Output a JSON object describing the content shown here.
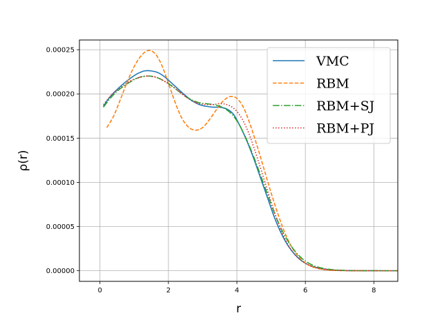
{
  "chart_data": {
    "type": "line",
    "title": "",
    "xlabel": "r",
    "ylabel": "ρ(r)",
    "xlim": [
      -0.6,
      8.7
    ],
    "ylim": [
      -1.2e-05,
      0.000261
    ],
    "grid": true,
    "legend_position": "upper-right",
    "x_ticks": [
      0,
      2,
      4,
      6,
      8
    ],
    "x_tick_labels": [
      "0",
      "2",
      "4",
      "6",
      "8"
    ],
    "y_ticks": [
      0.0,
      5e-05,
      0.0001,
      0.00015,
      0.0002,
      0.00025
    ],
    "y_tick_labels": [
      "0.00000",
      "0.00005",
      "0.00010",
      "0.00015",
      "0.00020",
      "0.00025"
    ],
    "series": [
      {
        "name": "VMC",
        "color": "#1f77b4",
        "dash": "solid",
        "x": [
          0.1,
          0.3,
          0.5,
          0.7,
          0.9,
          1.1,
          1.3,
          1.5,
          1.7,
          1.9,
          2.1,
          2.3,
          2.5,
          2.7,
          2.9,
          3.1,
          3.3,
          3.5,
          3.7,
          3.9,
          4.1,
          4.3,
          4.5,
          4.7,
          4.9,
          5.1,
          5.3,
          5.5,
          5.7,
          5.9,
          6.1,
          6.3,
          6.5,
          6.7,
          6.9,
          7.1,
          7.3,
          7.5,
          7.7,
          7.9,
          8.1,
          8.3,
          8.5,
          8.7
        ],
        "y": [
          0.000186,
          0.000197,
          0.000205,
          0.000212,
          0.000218,
          0.000223,
          0.000226,
          0.000226,
          0.000224,
          0.000219,
          0.000212,
          0.000205,
          0.000198,
          0.000192,
          0.000188,
          0.000186,
          0.000185,
          0.000185,
          0.000183,
          0.000177,
          0.000163,
          0.000146,
          0.000126,
          0.000104,
          8.2e-05,
          6e-05,
          4.2e-05,
          2.8e-05,
          1.8e-05,
          1.1e-05,
          6.5e-06,
          3.8e-06,
          2.2e-06,
          1.2e-06,
          6e-07,
          3e-07,
          1.5e-07,
          8e-08,
          4e-08,
          2e-08,
          1e-08,
          0.0,
          0.0,
          0.0
        ]
      },
      {
        "name": "RBM",
        "color": "#ff7f0e",
        "dash": "dashed",
        "x": [
          0.2,
          0.4,
          0.6,
          0.8,
          1.0,
          1.2,
          1.4,
          1.6,
          1.8,
          2.0,
          2.2,
          2.4,
          2.6,
          2.8,
          3.0,
          3.2,
          3.4,
          3.6,
          3.8,
          4.0,
          4.2,
          4.4,
          4.6,
          4.8,
          5.0,
          5.2,
          5.4,
          5.6,
          5.8,
          6.0,
          6.2,
          6.4,
          6.6,
          6.8,
          7.0,
          7.2,
          7.4,
          7.6,
          7.8,
          8.0,
          8.2,
          8.4,
          8.7
        ],
        "y": [
          0.000162,
          0.000175,
          0.000194,
          0.000214,
          0.000231,
          0.000243,
          0.000249,
          0.000246,
          0.000233,
          0.000212,
          0.00019,
          0.000172,
          0.000162,
          0.000159,
          0.000162,
          0.000171,
          0.000182,
          0.000192,
          0.000197,
          0.000195,
          0.000184,
          0.000164,
          0.00014,
          0.000114,
          8.8e-05,
          6.4e-05,
          4.3e-05,
          2.7e-05,
          1.6e-05,
          8.8e-06,
          4.6e-06,
          2.3e-06,
          1.1e-06,
          5e-07,
          2.2e-07,
          1e-07,
          4e-08,
          2e-08,
          1e-08,
          0.0,
          0.0,
          0.0,
          0.0
        ]
      },
      {
        "name": "RBM+SJ",
        "color": "#2ca02c",
        "dash": "dashdot",
        "x": [
          0.1,
          0.3,
          0.5,
          0.7,
          0.9,
          1.1,
          1.3,
          1.5,
          1.7,
          1.9,
          2.1,
          2.3,
          2.5,
          2.7,
          2.9,
          3.1,
          3.3,
          3.5,
          3.7,
          3.9,
          4.1,
          4.3,
          4.5,
          4.7,
          4.9,
          5.1,
          5.3,
          5.5,
          5.7,
          5.9,
          6.1,
          6.3,
          6.5,
          6.7,
          6.9,
          7.1,
          7.3,
          7.5,
          7.7,
          7.9,
          8.1,
          8.3,
          8.5,
          8.7
        ],
        "y": [
          0.000185,
          0.000195,
          0.000203,
          0.000209,
          0.000214,
          0.000218,
          0.00022,
          0.00022,
          0.000218,
          0.000214,
          0.000209,
          0.000203,
          0.000197,
          0.000193,
          0.00019,
          0.000189,
          0.000188,
          0.000186,
          0.000182,
          0.000175,
          0.000163,
          0.000147,
          0.000128,
          0.000107,
          8.6e-05,
          6.5e-05,
          4.7e-05,
          3.3e-05,
          2.2e-05,
          1.4e-05,
          8.5e-06,
          5e-06,
          2.9e-06,
          1.6e-06,
          8e-07,
          4e-07,
          2e-07,
          1e-07,
          5e-08,
          2e-08,
          1e-08,
          0.0,
          0.0,
          0.0
        ]
      },
      {
        "name": "RBM+PJ",
        "color": "#d62728",
        "dash": "dotted",
        "x": [
          0.1,
          0.3,
          0.5,
          0.7,
          0.9,
          1.1,
          1.3,
          1.5,
          1.7,
          1.9,
          2.1,
          2.3,
          2.5,
          2.7,
          2.9,
          3.1,
          3.3,
          3.5,
          3.7,
          3.9,
          4.1,
          4.3,
          4.5,
          4.7,
          4.9,
          5.1,
          5.3,
          5.5,
          5.7,
          5.9,
          6.1,
          6.3,
          6.5,
          6.7,
          6.9,
          7.1,
          7.3,
          7.5,
          7.7,
          7.9,
          8.1,
          8.3,
          8.5,
          8.7
        ],
        "y": [
          0.000188,
          0.000197,
          0.000204,
          0.00021,
          0.000215,
          0.000218,
          0.00022,
          0.00022,
          0.000218,
          0.000214,
          0.000209,
          0.000203,
          0.000197,
          0.000192,
          0.000189,
          0.000188,
          0.000188,
          0.000189,
          0.000188,
          0.000184,
          0.000175,
          0.00016,
          0.000139,
          0.000115,
          9e-05,
          6.6e-05,
          4.5e-05,
          2.9e-05,
          1.8e-05,
          1.1e-05,
          6.2e-06,
          3.4e-06,
          1.8e-06,
          9e-07,
          4e-07,
          2e-07,
          1e-07,
          5e-08,
          2e-08,
          1e-08,
          0.0,
          0.0,
          0.0,
          0.0
        ]
      }
    ]
  }
}
